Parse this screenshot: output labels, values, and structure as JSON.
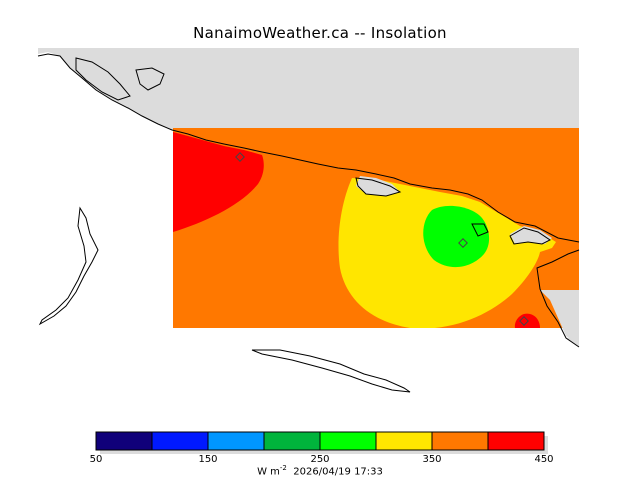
{
  "title": "NanaimoWeather.ca -- Insolation",
  "colorbar": {
    "colors": [
      "#10007a",
      "#0019ff",
      "#0096ff",
      "#00b43c",
      "#00ff00",
      "#ffe600",
      "#ff7800",
      "#ff0000"
    ],
    "tick_labels": [
      "50",
      "150",
      "250",
      "350",
      "450"
    ],
    "units_prefix": "W m",
    "units_exponent": "-2",
    "timestamp": "2026/04/19 17:33"
  },
  "colors": {
    "land": "#dcdcdc",
    "coast": "#000000",
    "background": "#ffffff"
  }
}
